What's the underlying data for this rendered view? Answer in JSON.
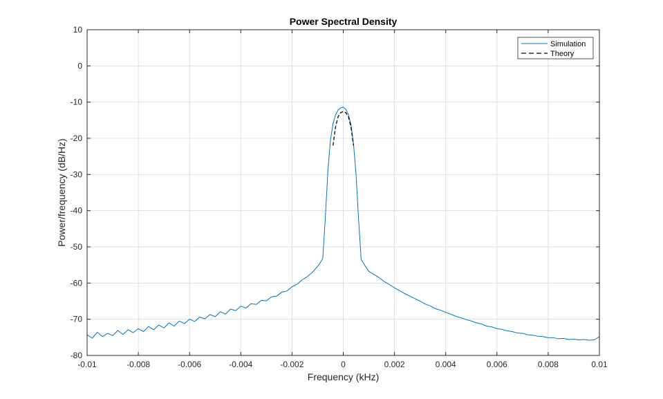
{
  "chart_data": {
    "type": "line",
    "title": "Power Spectral Density",
    "xlabel": "Frequency (kHz)",
    "ylabel": "Power/frequency (dB/Hz)",
    "xlim": [
      -0.01,
      0.01
    ],
    "ylim": [
      -80,
      10
    ],
    "x_ticks": [
      -0.01,
      -0.008,
      -0.006,
      -0.004,
      -0.002,
      0,
      0.002,
      0.004,
      0.006,
      0.008,
      0.01
    ],
    "x_tick_labels": [
      "-0.01",
      "-0.008",
      "-0.006",
      "-0.004",
      "-0.002",
      "0",
      "0.002",
      "0.004",
      "0.006",
      "0.008",
      "0.01"
    ],
    "y_ticks": [
      10,
      0,
      -10,
      -20,
      -30,
      -40,
      -50,
      -60,
      -70,
      -80
    ],
    "y_tick_labels": [
      "10",
      "0",
      "-10",
      "-20",
      "-30",
      "-40",
      "-50",
      "-60",
      "-70",
      "-80"
    ],
    "grid": true,
    "legend_position": "top-right",
    "colors": {
      "simulation": "#0072BD",
      "theory": "#000000",
      "grid": "#dfdfdf",
      "axes": "#262626"
    },
    "series": [
      {
        "name": "Simulation",
        "style": "solid",
        "x": [
          -0.01,
          -0.0098,
          -0.0096,
          -0.0094,
          -0.0092,
          -0.009,
          -0.0088,
          -0.0086,
          -0.0084,
          -0.0082,
          -0.008,
          -0.0078,
          -0.0076,
          -0.0074,
          -0.0072,
          -0.007,
          -0.0068,
          -0.0066,
          -0.0064,
          -0.0062,
          -0.006,
          -0.0058,
          -0.0056,
          -0.0054,
          -0.0052,
          -0.005,
          -0.0048,
          -0.0046,
          -0.0044,
          -0.0042,
          -0.004,
          -0.0038,
          -0.0036,
          -0.0034,
          -0.0032,
          -0.003,
          -0.0028,
          -0.0026,
          -0.0024,
          -0.0022,
          -0.002,
          -0.0018,
          -0.0016,
          -0.0014,
          -0.0012,
          -0.001,
          -0.0009,
          -0.0008,
          -0.0007,
          -0.0006,
          -0.0005,
          -0.0004,
          -0.0003,
          -0.0002,
          -0.0001,
          0.0,
          0.0001,
          0.0002,
          0.0003,
          0.0004,
          0.0005,
          0.0006,
          0.0007,
          0.0008,
          0.0009,
          0.001,
          0.0012,
          0.0014,
          0.0016,
          0.0018,
          0.002,
          0.0022,
          0.0024,
          0.0026,
          0.0028,
          0.003,
          0.0032,
          0.0034,
          0.0036,
          0.0038,
          0.004,
          0.0042,
          0.0044,
          0.0046,
          0.0048,
          0.005,
          0.0052,
          0.0054,
          0.0056,
          0.0058,
          0.006,
          0.0062,
          0.0064,
          0.0066,
          0.0068,
          0.007,
          0.0072,
          0.0074,
          0.0076,
          0.0078,
          0.008,
          0.0082,
          0.0084,
          0.0086,
          0.0088,
          0.009,
          0.0092,
          0.0094,
          0.0096,
          0.0098,
          0.01
        ],
        "y": [
          -74.3,
          -75.2,
          -73.6,
          -74.8,
          -73.9,
          -74.5,
          -73.1,
          -74.2,
          -72.9,
          -73.7,
          -72.6,
          -73.4,
          -72.0,
          -72.9,
          -71.6,
          -72.4,
          -71.0,
          -71.9,
          -70.5,
          -71.2,
          -70.0,
          -70.6,
          -69.4,
          -69.9,
          -68.7,
          -69.3,
          -67.9,
          -68.6,
          -67.2,
          -67.6,
          -66.4,
          -66.9,
          -65.7,
          -65.9,
          -64.8,
          -64.9,
          -63.8,
          -63.6,
          -62.5,
          -62.2,
          -61.0,
          -60.3,
          -59.1,
          -58.2,
          -57.0,
          -55.4,
          -54.4,
          -53.2,
          -42.0,
          -29.0,
          -20.5,
          -16.0,
          -13.5,
          -12.2,
          -11.6,
          -11.4,
          -12.0,
          -13.4,
          -16.2,
          -21.5,
          -30.0,
          -42.5,
          -53.5,
          -54.6,
          -55.8,
          -56.8,
          -57.6,
          -58.5,
          -59.6,
          -60.4,
          -61.3,
          -62.1,
          -62.9,
          -63.6,
          -64.3,
          -65.0,
          -65.8,
          -66.3,
          -67.1,
          -67.5,
          -68.1,
          -68.6,
          -69.2,
          -69.6,
          -70.1,
          -70.5,
          -71.0,
          -71.3,
          -71.9,
          -72.1,
          -72.6,
          -72.8,
          -73.2,
          -73.4,
          -73.8,
          -73.9,
          -74.3,
          -74.4,
          -74.7,
          -74.8,
          -75.1,
          -75.1,
          -75.4,
          -75.3,
          -75.6,
          -75.5,
          -75.7,
          -75.6,
          -75.8,
          -75.7,
          -74.8
        ]
      },
      {
        "name": "Theory",
        "style": "dashed",
        "x": [
          -0.0004,
          -0.0003,
          -0.0002,
          -0.0001,
          0.0,
          0.0001,
          0.0002,
          0.0003,
          0.0004
        ],
        "y": [
          -22.0,
          -16.8,
          -14.0,
          -12.9,
          -12.6,
          -12.9,
          -14.0,
          -16.8,
          -22.0
        ]
      }
    ]
  }
}
